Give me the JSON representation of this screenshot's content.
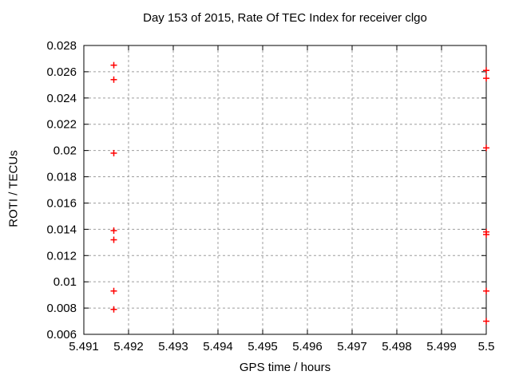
{
  "chart_data": {
    "type": "scatter",
    "title": "Day 153 of 2015, Rate Of TEC Index for receiver clgo",
    "xlabel": "GPS time / hours",
    "ylabel": "ROTI / TECUs",
    "xlim": [
      5.491,
      5.5
    ],
    "ylim": [
      0.006,
      0.028
    ],
    "xticks": [
      5.491,
      5.492,
      5.493,
      5.494,
      5.495,
      5.496,
      5.497,
      5.498,
      5.499,
      5.5
    ],
    "xtick_labels": [
      "5.491",
      "5.492",
      "5.493",
      "5.494",
      "5.495",
      "5.496",
      "5.497",
      "5.498",
      "5.499",
      "5.5"
    ],
    "yticks": [
      0.006,
      0.008,
      0.01,
      0.012,
      0.014,
      0.016,
      0.018,
      0.02,
      0.022,
      0.024,
      0.026,
      0.028
    ],
    "ytick_labels": [
      "0.006",
      "0.008",
      "0.01",
      "0.012",
      "0.014",
      "0.016",
      "0.018",
      "0.02",
      "0.022",
      "0.024",
      "0.026",
      "0.028"
    ],
    "grid": true,
    "legend_position": "none",
    "marker_symbol": "plus",
    "marker_color": "#ff0000",
    "axis_color": "#000000",
    "grid_color": "#9e9e9e",
    "background": "#ffffff",
    "series": [
      {
        "name": "ROTI",
        "points": [
          [
            5.49167,
            0.0265
          ],
          [
            5.49167,
            0.0254
          ],
          [
            5.49167,
            0.0198
          ],
          [
            5.49167,
            0.0139
          ],
          [
            5.49167,
            0.0132
          ],
          [
            5.49167,
            0.0093
          ],
          [
            5.49167,
            0.0079
          ],
          [
            5.5,
            0.0261
          ],
          [
            5.5,
            0.0255
          ],
          [
            5.5,
            0.0202
          ],
          [
            5.5,
            0.0138
          ],
          [
            5.5,
            0.0136
          ],
          [
            5.5,
            0.0093
          ],
          [
            5.5,
            0.007
          ]
        ]
      }
    ]
  }
}
